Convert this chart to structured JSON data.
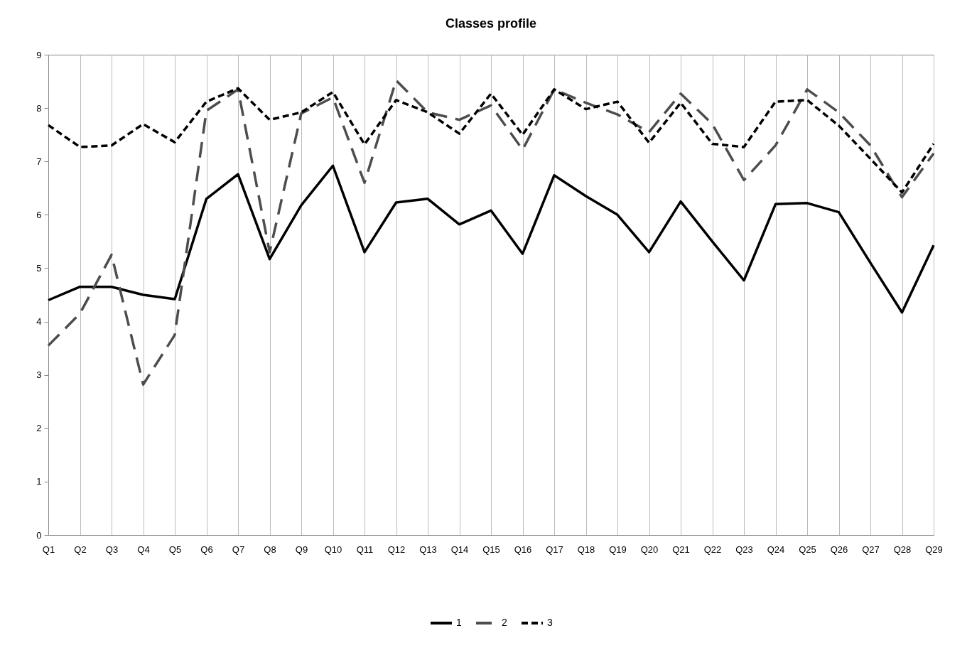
{
  "chart_data": {
    "type": "line",
    "title": "Classes profile",
    "categories": [
      "Q1",
      "Q2",
      "Q3",
      "Q4",
      "Q5",
      "Q6",
      "Q7",
      "Q8",
      "Q9",
      "Q10",
      "Q11",
      "Q12",
      "Q13",
      "Q14",
      "Q15",
      "Q16",
      "Q17",
      "Q18",
      "Q19",
      "Q20",
      "Q21",
      "Q22",
      "Q23",
      "Q24",
      "Q25",
      "Q26",
      "Q27",
      "Q28",
      "Q29"
    ],
    "series": [
      {
        "name": "1",
        "color": "#000000",
        "line_style": "solid",
        "values": [
          4.4,
          4.65,
          4.65,
          4.5,
          4.42,
          6.3,
          6.76,
          5.17,
          6.18,
          6.92,
          5.3,
          6.23,
          6.3,
          5.82,
          6.08,
          5.27,
          6.74,
          6.35,
          6.0,
          5.3,
          6.25,
          5.5,
          4.77,
          6.2,
          6.22,
          6.05,
          5.1,
          4.17,
          5.43
        ]
      },
      {
        "name": "2",
        "color": "#4d4d4d",
        "line_style": "dashed",
        "values": [
          3.55,
          4.15,
          5.25,
          2.82,
          3.75,
          7.95,
          8.35,
          5.3,
          7.9,
          8.2,
          6.6,
          8.52,
          7.92,
          7.78,
          8.05,
          7.22,
          8.35,
          8.1,
          7.88,
          7.55,
          8.27,
          7.7,
          6.65,
          7.3,
          8.35,
          7.92,
          7.3,
          6.33,
          7.15
        ]
      },
      {
        "name": "3",
        "color": "#000000",
        "line_style": "dotted",
        "values": [
          7.68,
          7.27,
          7.3,
          7.7,
          7.36,
          8.12,
          8.37,
          7.78,
          7.92,
          8.3,
          7.32,
          8.15,
          7.92,
          7.52,
          8.27,
          7.5,
          8.35,
          7.98,
          8.12,
          7.35,
          8.1,
          7.33,
          7.27,
          8.12,
          8.15,
          7.67,
          7.05,
          6.42,
          7.33
        ]
      }
    ],
    "ylim": [
      0,
      9
    ],
    "yticks": [
      0,
      1,
      2,
      3,
      4,
      5,
      6,
      7,
      8,
      9
    ],
    "grid": "x",
    "legend": "bottom",
    "marker": "none"
  }
}
